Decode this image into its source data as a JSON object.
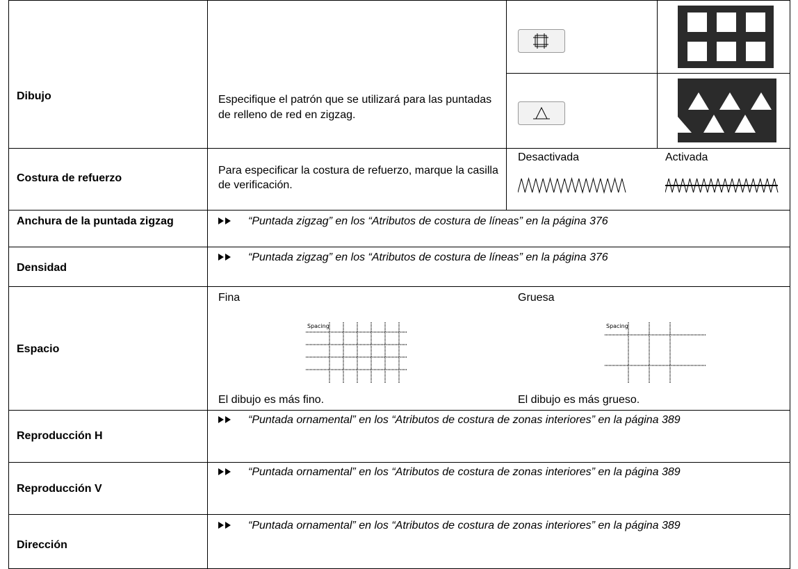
{
  "table": {
    "rows": [
      {
        "label": "Dibujo",
        "description": "Especifique el patrón que se utilizará para las puntadas de relleno de red en zigzag."
      },
      {
        "label": "Costura de refuerzo",
        "description": "Para especificar la costura de refuerzo, marque la casilla de verificación.",
        "options": [
          "Desactivada",
          "Activada"
        ]
      },
      {
        "label": "Anchura de la puntada zigzag",
        "reference": "“Puntada zigzag” en los “Atributos de costura de líneas” en la página 376"
      },
      {
        "label": "Densidad",
        "reference": "“Puntada zigzag” en los “Atributos de costura de líneas” en la página 376"
      },
      {
        "label": "Espacio",
        "options": [
          "Fina",
          "Gruesa"
        ],
        "image_labels": [
          "Spacing",
          "Spacing"
        ],
        "captions": [
          "El dibujo es más fino.",
          "El dibujo es más grueso."
        ]
      },
      {
        "label": "Reproducción H",
        "reference": "“Puntada ornamental” en los “Atributos de costura de zonas interiores” en la página 389"
      },
      {
        "label": "Reproducción V",
        "reference": "“Puntada ornamental” en los “Atributos de costura de zonas interiores” en la página 389"
      },
      {
        "label": "Dirección",
        "reference": "“Puntada ornamental” en los “Atributos de costura de zonas interiores” en la página 389"
      }
    ]
  }
}
